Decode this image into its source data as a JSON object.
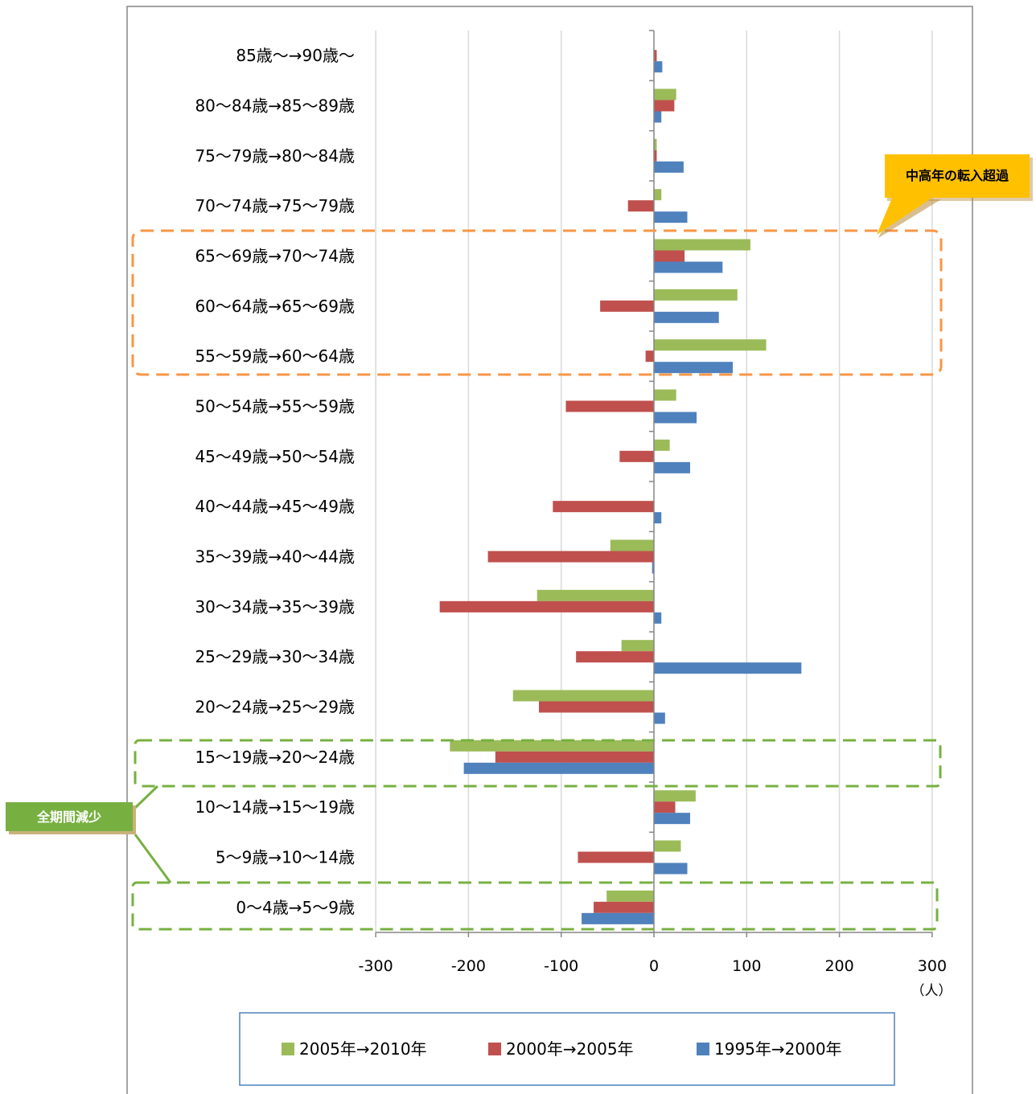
{
  "chart_data": {
    "type": "bar",
    "orientation": "horizontal",
    "categories": [
      "85歳〜→90歳〜",
      "80〜84歳→85〜89歳",
      "75〜79歳→80〜84歳",
      "70〜74歳→75〜79歳",
      "65〜69歳→70〜74歳",
      "60〜64歳→65〜69歳",
      "55〜59歳→60〜64歳",
      "50〜54歳→55〜59歳",
      "45〜49歳→50〜54歳",
      "40〜44歳→45〜49歳",
      "35〜39歳→40〜44歳",
      "30〜34歳→35〜39歳",
      "25〜29歳→30〜34歳",
      "20〜24歳→25〜29歳",
      "15〜19歳→20〜24歳",
      "10〜14歳→15〜19歳",
      "5〜9歳→10〜14歳",
      "0〜4歳→5〜9歳"
    ],
    "series": [
      {
        "name": "2005年→2010年",
        "color": "#9BBB59",
        "values": [
          0,
          24,
          3,
          8,
          104,
          90,
          121,
          24,
          17,
          0,
          -47,
          -126,
          -35,
          -152,
          -220,
          45,
          29,
          -51
        ]
      },
      {
        "name": "2000年→2005年",
        "color": "#C0504D",
        "values": [
          3,
          22,
          3,
          -28,
          33,
          -58,
          -9,
          -95,
          -37,
          -109,
          -179,
          -231,
          -84,
          -124,
          -171,
          23,
          -82,
          -65
        ]
      },
      {
        "name": "1995年→2000年",
        "color": "#4F81BD",
        "values": [
          9,
          8,
          32,
          36,
          74,
          70,
          85,
          46,
          39,
          8,
          -2,
          8,
          159,
          12,
          -205,
          39,
          36,
          -78
        ]
      }
    ],
    "xlim": [
      -300,
      300
    ],
    "xticks": [
      -300,
      -200,
      -100,
      0,
      100,
      200,
      300
    ],
    "xunit": "（人）",
    "grid": true,
    "legend_position": "bottom",
    "annotations": [
      {
        "text": "中高年の転入超過",
        "highlight": [
          "65〜69歳→70〜74歳",
          "60〜64歳→65〜69歳",
          "55〜59歳→60〜64歳"
        ],
        "color": "#F79646"
      },
      {
        "text": "全期間減少",
        "highlight": [
          "15〜19歳→20〜24歳",
          "0〜4歳→5〜9歳"
        ],
        "color": "#77B041"
      }
    ]
  }
}
